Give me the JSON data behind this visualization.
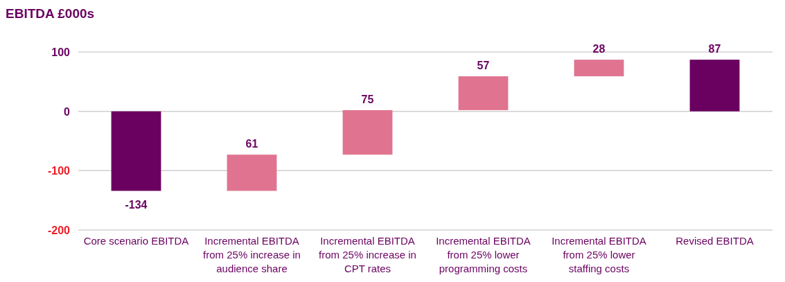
{
  "chart_data": {
    "type": "bar",
    "title": "EBITDA £000s",
    "categories": [
      "Core scenario EBITDA",
      "Incremental EBITDA from 25% increase in audience share",
      "Incremental EBITDA from 25% increase in CPT rates",
      "Incremental EBITDA from 25% lower programming costs",
      "Incremental EBITDA from 25% lower staffing costs",
      "Revised EBITDA"
    ],
    "values": [
      -134,
      61,
      75,
      57,
      28,
      87
    ],
    "base": [
      0,
      -134,
      -73,
      2,
      59,
      0
    ],
    "colors": [
      "#6a0060",
      "#e07490",
      "#e07490",
      "#e07490",
      "#e07490",
      "#6a0060"
    ],
    "ylim": [
      -200,
      100
    ],
    "yticks": [
      -200,
      -100,
      0,
      100
    ],
    "grid": "y",
    "data_labels": true
  }
}
